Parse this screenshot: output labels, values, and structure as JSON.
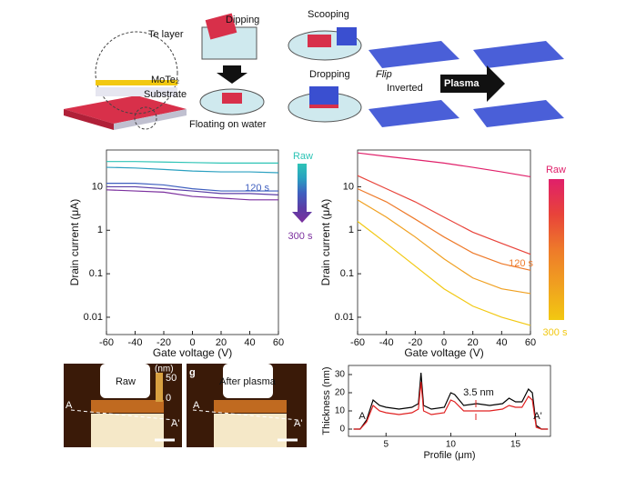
{
  "diagram": {
    "te_layer": "Te layer",
    "mote2": "MoTe₂",
    "substrate": "Substrate",
    "dipping": "Dipping",
    "floating": "Floating on water",
    "scooping": "Scooping",
    "dropping": "Dropping",
    "flip": "Flip",
    "inverted": "Inverted",
    "plasma": "Plasma"
  },
  "afm": {
    "unit": "(nm)",
    "scale_max": 50,
    "scale_min": 0,
    "raw": "Raw",
    "after_plasma": "After plasma",
    "a": "A",
    "a_prime": "A'",
    "panel": "g"
  },
  "chart_data": [
    {
      "type": "line",
      "log_y": true,
      "xlabel": "Gate voltage (V)",
      "ylabel": "Drain current (μA)",
      "x": [
        -60,
        -40,
        -20,
        0,
        20,
        40,
        60
      ],
      "xlim": [
        -60,
        60
      ],
      "xticks": [
        -60,
        -40,
        -20,
        0,
        20,
        40,
        60
      ],
      "ylim": [
        0.004,
        70
      ],
      "yticks": [
        0.01,
        0.1,
        1,
        10
      ],
      "series": [
        {
          "name": "Raw",
          "color": "#2ec4b6",
          "values": [
            38,
            38,
            37,
            36,
            35,
            35,
            35
          ]
        },
        {
          "color": "#2aa0c0",
          "values": [
            28,
            27,
            25,
            23,
            22,
            22,
            21
          ]
        },
        {
          "name": "120 s",
          "color": "#3f5fbf",
          "values": [
            12,
            12,
            11,
            9,
            8,
            8,
            8
          ]
        },
        {
          "color": "#5b3ea6",
          "values": [
            10,
            10,
            9,
            8,
            7,
            7,
            6.5
          ]
        },
        {
          "name": "300 s",
          "color": "#7b2f9e",
          "values": [
            8.5,
            8,
            7.5,
            6,
            5.5,
            5,
            5
          ]
        }
      ]
    },
    {
      "type": "line",
      "log_y": true,
      "xlabel": "Gate voltage (V)",
      "ylabel": "Drain current (μA)",
      "x": [
        -60,
        -40,
        -20,
        0,
        20,
        40,
        60
      ],
      "xlim": [
        -60,
        60
      ],
      "xticks": [
        -60,
        -40,
        -20,
        0,
        20,
        40,
        60
      ],
      "ylim": [
        0.004,
        70
      ],
      "yticks": [
        0.01,
        0.1,
        1,
        10
      ],
      "series": [
        {
          "name": "Raw",
          "color": "#e0206a",
          "values": [
            60,
            50,
            42,
            35,
            28,
            22,
            17
          ]
        },
        {
          "color": "#e8433a",
          "values": [
            18,
            9,
            4.5,
            2,
            0.9,
            0.5,
            0.28
          ]
        },
        {
          "name": "120 s",
          "color": "#ee7a2a",
          "values": [
            9,
            4.5,
            1.8,
            0.7,
            0.3,
            0.17,
            0.12
          ]
        },
        {
          "color": "#f0a020",
          "values": [
            5,
            2,
            0.7,
            0.22,
            0.08,
            0.045,
            0.035
          ]
        },
        {
          "name": "300 s",
          "color": "#f2c811",
          "values": [
            1.6,
            0.5,
            0.15,
            0.045,
            0.018,
            0.01,
            0.0065
          ]
        }
      ]
    },
    {
      "type": "line",
      "log_y": false,
      "xlabel": "Profile (μm)",
      "ylabel": "Thickness (nm)",
      "annotations": [
        "3.5 nm",
        "A",
        "A'"
      ],
      "x": [
        2.5,
        3.0,
        3.5,
        4.0,
        4.5,
        5.0,
        6.0,
        7.0,
        7.5,
        7.7,
        7.9,
        8.5,
        9.5,
        10.0,
        10.3,
        11.0,
        12.0,
        13.0,
        14.0,
        14.5,
        15.0,
        15.5,
        16.0,
        16.3,
        16.6,
        17.0,
        17.5
      ],
      "xlim": [
        2.1,
        17.7
      ],
      "xticks": [
        5,
        10,
        15
      ],
      "ylim": [
        -4,
        35
      ],
      "yticks": [
        0,
        10,
        20,
        30
      ],
      "series": [
        {
          "color": "#000000",
          "values": [
            0,
            0,
            5,
            16,
            13,
            12,
            11,
            12,
            14,
            31,
            13,
            11,
            12,
            20,
            19,
            13,
            14,
            13,
            14,
            17,
            15,
            15,
            22,
            20,
            2,
            0,
            0
          ]
        },
        {
          "color": "#e02020",
          "values": [
            0,
            0,
            4,
            13,
            10,
            9,
            8,
            9,
            11,
            26,
            10,
            8,
            9,
            16,
            15,
            10,
            10,
            10,
            11,
            13,
            12,
            12,
            18,
            16,
            1,
            0,
            0
          ]
        }
      ]
    }
  ]
}
